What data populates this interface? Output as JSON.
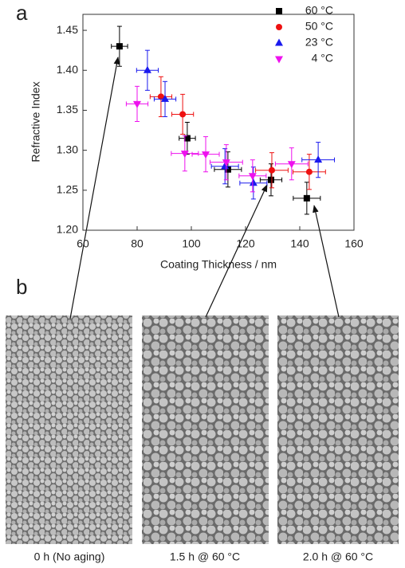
{
  "chart_data": {
    "type": "scatter",
    "panel_labels": [
      "a",
      "b"
    ],
    "xlabel": "Coating Thickness / nm",
    "ylabel": "Refractive Index",
    "xlim": [
      60,
      160
    ],
    "xticks": [
      60,
      80,
      100,
      120,
      140,
      160
    ],
    "ylim": [
      1.2,
      1.47
    ],
    "yticks": [
      {
        "value": 1.2,
        "label": "1.20"
      },
      {
        "value": 1.25,
        "label": "1.25"
      },
      {
        "value": 1.3,
        "label": "1.30"
      },
      {
        "value": 1.35,
        "label": "1.35"
      },
      {
        "value": 1.4,
        "label": "1.40"
      },
      {
        "value": 1.45,
        "label": "1.45"
      }
    ],
    "legend": "top-right",
    "series": [
      {
        "name": "60 °C",
        "color": "#000000",
        "marker": "square",
        "x": [
          73.5,
          98.5,
          113.5,
          129.4,
          142.6
        ],
        "values": [
          1.43,
          1.315,
          1.276,
          1.263,
          1.24
        ],
        "xerr": [
          3,
          3,
          5,
          4,
          5
        ],
        "yerr": [
          0.025,
          0.02,
          0.022,
          0.02,
          0.02
        ]
      },
      {
        "name": "50 °C",
        "color": "#ee1111",
        "marker": "circle",
        "x": [
          88.8,
          96.8,
          129.7,
          143.5
        ],
        "values": [
          1.367,
          1.345,
          1.275,
          1.273
        ],
        "xerr": [
          4,
          4,
          6,
          6
        ],
        "yerr": [
          0.025,
          0.025,
          0.022,
          0.022
        ]
      },
      {
        "name": "23 °C",
        "color": "#1a1aee",
        "marker": "triangle-up",
        "x": [
          83.8,
          90.3,
          112.4,
          122.9,
          146.8
        ],
        "values": [
          1.4,
          1.364,
          1.28,
          1.259,
          1.288
        ],
        "xerr": [
          4,
          4,
          5,
          5,
          6
        ],
        "yerr": [
          0.025,
          0.022,
          0.022,
          0.02,
          0.022
        ]
      },
      {
        "name": "4 °C",
        "color": "#ee11ee",
        "marker": "triangle-down",
        "x": [
          80,
          97.6,
          105.3,
          112.9,
          122.6,
          137
        ],
        "values": [
          1.358,
          1.296,
          1.295,
          1.285,
          1.268,
          1.283
        ],
        "xerr": [
          4,
          5,
          5,
          6,
          5,
          6
        ],
        "yerr": [
          0.022,
          0.022,
          0.022,
          0.022,
          0.02,
          0.02
        ]
      }
    ],
    "image_captions": [
      "0 h (No aging)",
      "1.5 h @ 60 °C",
      "2.0 h @ 60 °C"
    ]
  }
}
